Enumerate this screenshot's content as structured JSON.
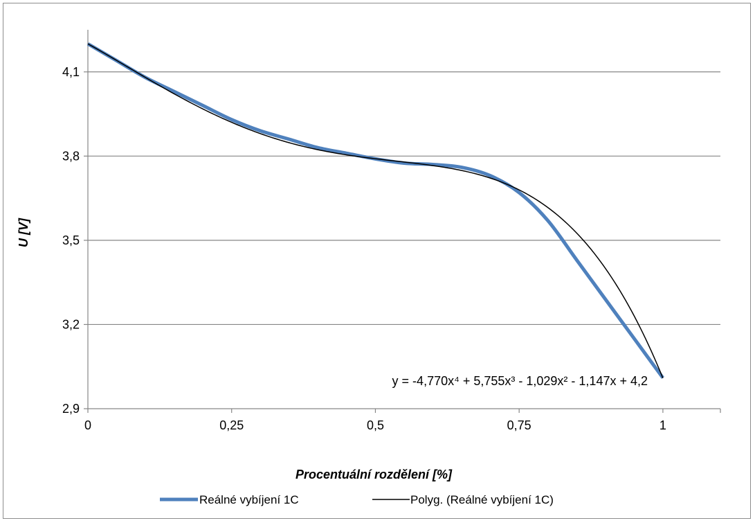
{
  "chart_data": {
    "type": "line",
    "title": "",
    "xlabel": "Procentuální rozdělení [%]",
    "ylabel": "U [V]",
    "xlim": [
      0,
      1.1
    ],
    "ylim": [
      2.9,
      4.25
    ],
    "x_ticks": [
      0,
      0.25,
      0.5,
      0.75,
      1
    ],
    "x_tick_labels": [
      "0",
      "0,25",
      "0,5",
      "0,75",
      "1"
    ],
    "y_ticks": [
      2.9,
      3.2,
      3.5,
      3.8,
      4.1
    ],
    "y_tick_labels": [
      "2,9",
      "3,2",
      "3,5",
      "3,8",
      "4,1"
    ],
    "grid": "horizontal",
    "legend_position": "bottom",
    "series": [
      {
        "name": "Reálné vybíjení 1C",
        "color": "#4f81bd",
        "x": [
          0,
          0.05,
          0.1,
          0.15,
          0.2,
          0.25,
          0.3,
          0.35,
          0.4,
          0.45,
          0.5,
          0.55,
          0.6,
          0.65,
          0.7,
          0.75,
          0.8,
          0.85,
          0.9,
          0.95,
          1.0
        ],
        "y": [
          4.2,
          4.14,
          4.08,
          4.03,
          3.98,
          3.93,
          3.89,
          3.86,
          3.83,
          3.81,
          3.79,
          3.775,
          3.77,
          3.76,
          3.73,
          3.67,
          3.57,
          3.43,
          3.29,
          3.15,
          3.01
        ]
      },
      {
        "name": "Polyg. (Reálné vybíjení 1C)",
        "color": "#000000",
        "trendline": true,
        "equation": "y = -4,770x⁴ + 5,755x³ - 1,029x² - 1,147x + 4,2",
        "coefficients": [
          -4.77,
          5.755,
          -1.029,
          -1.147,
          4.2
        ]
      }
    ]
  }
}
